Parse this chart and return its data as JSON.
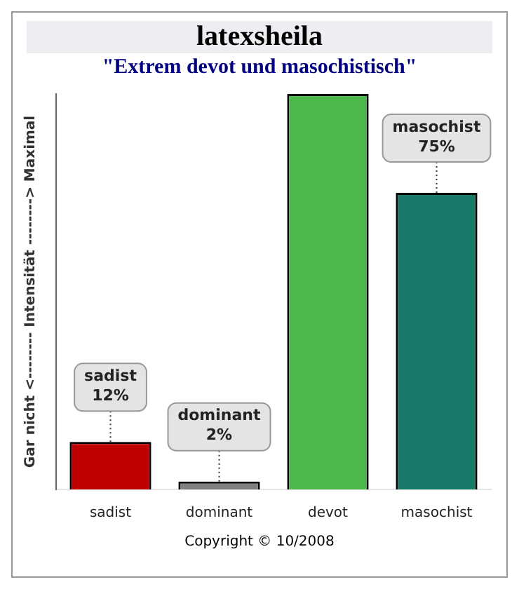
{
  "chart_data": {
    "type": "bar",
    "title": "latexsheila",
    "subtitle": "\"Extrem devot und masochistisch\"",
    "ylabel": "Gar nicht <-------- Intensität --------> Maximal",
    "categories": [
      "sadist",
      "dominant",
      "devot",
      "masochist"
    ],
    "values": [
      12,
      2,
      100,
      75
    ],
    "colors": [
      "#c00000",
      "#808080",
      "#4cb84c",
      "#1a7a6a"
    ],
    "value_labels": [
      "sadist\n12%",
      "dominant\n2%",
      null,
      "masochist\n75%"
    ],
    "ylim": [
      0,
      100
    ],
    "tick_labels": "x",
    "grid": false,
    "legend": false,
    "annotations": [
      "Copyright © 10/2008"
    ]
  }
}
